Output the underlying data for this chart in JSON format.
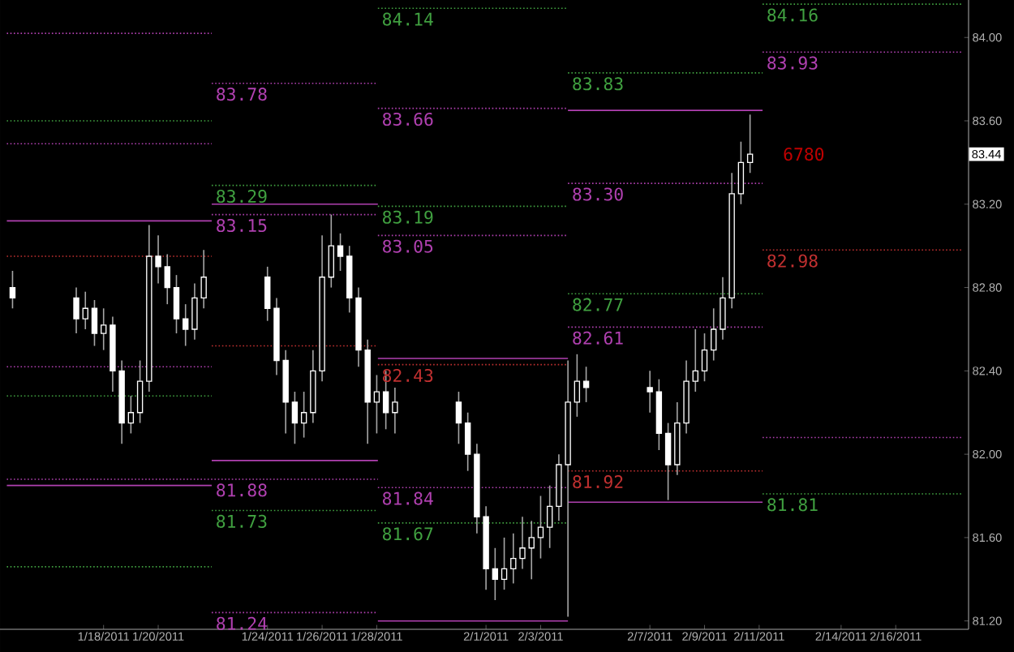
{
  "chart_data": {
    "type": "candlestick",
    "color": "#ffffff",
    "x": [
      "2011-01-14T16:00",
      "2011-01-17T00:00",
      "2011-01-17T08:00",
      "2011-01-17T16:00",
      "2011-01-18T00:00",
      "2011-01-18T08:00",
      "2011-01-18T16:00",
      "2011-01-19T00:00",
      "2011-01-19T08:00",
      "2011-01-19T16:00",
      "2011-01-20T00:00",
      "2011-01-20T08:00",
      "2011-01-20T16:00",
      "2011-01-21T00:00",
      "2011-01-21T08:00",
      "2011-01-21T16:00",
      "2011-01-24T00:00",
      "2011-01-24T08:00",
      "2011-01-24T16:00",
      "2011-01-25T00:00",
      "2011-01-25T08:00",
      "2011-01-25T16:00",
      "2011-01-26T00:00",
      "2011-01-26T08:00",
      "2011-01-26T16:00",
      "2011-01-27T00:00",
      "2011-01-27T08:00",
      "2011-01-27T16:00",
      "2011-01-28T00:00",
      "2011-01-28T08:00",
      "2011-01-28T16:00",
      "2011-01-31T00:00",
      "2011-01-31T08:00",
      "2011-01-31T16:00",
      "2011-02-01T00:00",
      "2011-02-01T08:00",
      "2011-02-01T16:00",
      "2011-02-02T00:00",
      "2011-02-02T08:00",
      "2011-02-02T16:00",
      "2011-02-03T00:00",
      "2011-02-03T08:00",
      "2011-02-03T16:00",
      "2011-02-04T00:00",
      "2011-02-04T08:00",
      "2011-02-04T16:00",
      "2011-02-07T00:00",
      "2011-02-07T08:00",
      "2011-02-07T16:00",
      "2011-02-08T00:00",
      "2011-02-08T08:00",
      "2011-02-08T16:00",
      "2011-02-09T00:00",
      "2011-02-09T08:00",
      "2011-02-09T16:00",
      "2011-02-10T00:00",
      "2011-02-10T08:00",
      "2011-02-10T16:00"
    ],
    "ohlc": [
      [
        82.8,
        82.88,
        82.7,
        82.75
      ],
      [
        82.75,
        82.8,
        82.58,
        82.65
      ],
      [
        82.65,
        82.78,
        82.6,
        82.7
      ],
      [
        82.7,
        82.74,
        82.52,
        82.58
      ],
      [
        82.58,
        82.7,
        82.5,
        82.62
      ],
      [
        82.62,
        82.66,
        82.3,
        82.4
      ],
      [
        82.4,
        82.45,
        82.05,
        82.15
      ],
      [
        82.15,
        82.28,
        82.1,
        82.2
      ],
      [
        82.2,
        82.45,
        82.15,
        82.35
      ],
      [
        82.35,
        83.1,
        82.3,
        82.95
      ],
      [
        82.95,
        83.05,
        82.82,
        82.9
      ],
      [
        82.9,
        82.96,
        82.72,
        82.8
      ],
      [
        82.8,
        82.86,
        82.58,
        82.65
      ],
      [
        82.65,
        82.72,
        82.52,
        82.6
      ],
      [
        82.6,
        82.82,
        82.55,
        82.75
      ],
      [
        82.75,
        82.98,
        82.7,
        82.85
      ],
      [
        82.85,
        82.9,
        82.64,
        82.7
      ],
      [
        82.7,
        82.75,
        82.38,
        82.45
      ],
      [
        82.45,
        82.5,
        82.1,
        82.25
      ],
      [
        82.25,
        82.3,
        82.05,
        82.15
      ],
      [
        82.15,
        82.3,
        82.08,
        82.2
      ],
      [
        82.2,
        82.5,
        82.15,
        82.4
      ],
      [
        82.4,
        83.05,
        82.35,
        82.85
      ],
      [
        82.85,
        83.15,
        82.8,
        83.0
      ],
      [
        83.0,
        83.06,
        82.88,
        82.95
      ],
      [
        82.95,
        83.0,
        82.68,
        82.75
      ],
      [
        82.75,
        82.8,
        82.42,
        82.5
      ],
      [
        82.5,
        82.55,
        82.05,
        82.25
      ],
      [
        82.25,
        82.38,
        82.1,
        82.3
      ],
      [
        82.3,
        82.4,
        82.12,
        82.2
      ],
      [
        82.2,
        82.32,
        82.1,
        82.25
      ],
      [
        82.25,
        82.3,
        82.05,
        82.15
      ],
      [
        82.15,
        82.2,
        81.92,
        82.0
      ],
      [
        82.0,
        82.05,
        81.62,
        81.7
      ],
      [
        81.7,
        81.75,
        81.35,
        81.45
      ],
      [
        81.45,
        81.55,
        81.3,
        81.4
      ],
      [
        81.4,
        81.6,
        81.35,
        81.45
      ],
      [
        81.45,
        81.62,
        81.38,
        81.5
      ],
      [
        81.5,
        81.7,
        81.45,
        81.55
      ],
      [
        81.55,
        81.68,
        81.4,
        81.6
      ],
      [
        81.6,
        81.8,
        81.5,
        81.65
      ],
      [
        81.65,
        81.85,
        81.55,
        81.75
      ],
      [
        81.75,
        82.0,
        81.68,
        81.95
      ],
      [
        81.95,
        82.45,
        81.22,
        82.25
      ],
      [
        82.25,
        82.48,
        82.18,
        82.35
      ],
      [
        82.35,
        82.42,
        82.25,
        82.32
      ],
      [
        82.32,
        82.4,
        82.2,
        82.3
      ],
      [
        82.3,
        82.36,
        82.02,
        82.1
      ],
      [
        82.1,
        82.15,
        81.78,
        81.95
      ],
      [
        81.95,
        82.25,
        81.9,
        82.15
      ],
      [
        82.15,
        82.45,
        82.1,
        82.35
      ],
      [
        82.35,
        82.6,
        82.3,
        82.4
      ],
      [
        82.4,
        82.58,
        82.35,
        82.5
      ],
      [
        82.5,
        82.7,
        82.45,
        82.6
      ],
      [
        82.6,
        82.85,
        82.55,
        82.75
      ],
      [
        82.75,
        83.35,
        82.7,
        83.25
      ],
      [
        83.25,
        83.5,
        83.2,
        83.4
      ],
      [
        83.4,
        83.63,
        83.35,
        83.44
      ]
    ],
    "xlim": [
      "2011-01-14T05:00",
      "2011-02-18T16:00"
    ],
    "ylim": [
      81.16,
      84.18
    ],
    "xticks": [
      {
        "value": "2011-01-18",
        "label": "1/18/2011"
      },
      {
        "value": "2011-01-20",
        "label": "1/20/2011"
      },
      {
        "value": "2011-01-24",
        "label": "1/24/2011"
      },
      {
        "value": "2011-01-26",
        "label": "1/26/2011"
      },
      {
        "value": "2011-01-28",
        "label": "1/28/2011"
      },
      {
        "value": "2011-02-01",
        "label": "2/1/2011"
      },
      {
        "value": "2011-02-03",
        "label": "2/3/2011"
      },
      {
        "value": "2011-02-07",
        "label": "2/7/2011"
      },
      {
        "value": "2011-02-09",
        "label": "2/9/2011"
      },
      {
        "value": "2011-02-11",
        "label": "2/11/2011"
      },
      {
        "value": "2011-02-14",
        "label": "2/14/2011"
      },
      {
        "value": "2011-02-16",
        "label": "2/16/2011"
      }
    ],
    "yticks": [
      {
        "value": 81.2,
        "label": "81.20"
      },
      {
        "value": 81.6,
        "label": "81.60"
      },
      {
        "value": 82.0,
        "label": "82.00"
      },
      {
        "value": 82.4,
        "label": "82.40"
      },
      {
        "value": 82.8,
        "label": "82.80"
      },
      {
        "value": 83.2,
        "label": "83.20"
      },
      {
        "value": 83.6,
        "label": "83.60"
      },
      {
        "value": 84.0,
        "label": "84.00"
      }
    ],
    "series": [
      {
        "type": "line",
        "x": [
          "2011-01-14T11:00",
          "2011-01-21T23:00"
        ],
        "values": [
          84.02,
          84.02
        ],
        "color": "#b040b0",
        "line_style": "dotted"
      },
      {
        "type": "line",
        "x": [
          "2011-01-14T11:00",
          "2011-01-21T23:00"
        ],
        "values": [
          83.6,
          83.6
        ],
        "color": "#40a040",
        "line_style": "dotted"
      },
      {
        "type": "line",
        "x": [
          "2011-01-14T11:00",
          "2011-01-21T23:00"
        ],
        "values": [
          83.49,
          83.49
        ],
        "color": "#b040b0",
        "line_style": "dotted"
      },
      {
        "type": "line",
        "x": [
          "2011-01-14T11:00",
          "2011-01-21T23:00"
        ],
        "values": [
          83.12,
          83.12
        ],
        "color": "#b040b0",
        "line_style": "solid"
      },
      {
        "type": "line",
        "x": [
          "2011-01-14T11:00",
          "2011-01-21T23:00"
        ],
        "values": [
          81.85,
          81.85
        ],
        "color": "#b040b0",
        "line_style": "solid"
      },
      {
        "type": "line",
        "x": [
          "2011-01-14T11:00",
          "2011-01-21T23:00"
        ],
        "values": [
          82.42,
          82.42
        ],
        "color": "#b040b0",
        "line_style": "dotted"
      },
      {
        "type": "line",
        "x": [
          "2011-01-14T11:00",
          "2011-01-21T23:00"
        ],
        "values": [
          82.95,
          82.95
        ],
        "color": "#c03030",
        "line_style": "dotted"
      },
      {
        "type": "line",
        "x": [
          "2011-01-14T11:00",
          "2011-01-21T23:00"
        ],
        "values": [
          82.28,
          82.28
        ],
        "color": "#40a040",
        "line_style": "dotted"
      },
      {
        "type": "line",
        "x": [
          "2011-01-14T11:00",
          "2011-01-28T01:00"
        ],
        "values": [
          81.88,
          81.88
        ],
        "color": "#b040b0",
        "line_style": "dotted"
      },
      {
        "type": "line",
        "x": [
          "2011-01-14T11:00",
          "2011-01-21T23:00"
        ],
        "values": [
          81.46,
          81.46
        ],
        "color": "#40a040",
        "line_style": "dotted"
      },
      {
        "type": "line",
        "x": [
          "2011-01-21T23:00",
          "2011-01-28T01:00"
        ],
        "values": [
          83.78,
          83.78
        ],
        "color": "#b040b0",
        "line_style": "dotted"
      },
      {
        "type": "line",
        "x": [
          "2011-01-21T23:00",
          "2011-01-28T01:00"
        ],
        "values": [
          83.29,
          83.29
        ],
        "color": "#40a040",
        "line_style": "dotted"
      },
      {
        "type": "line",
        "x": [
          "2011-01-21T23:00",
          "2011-01-28T01:00"
        ],
        "values": [
          83.15,
          83.15
        ],
        "color": "#b040b0",
        "line_style": "dotted"
      },
      {
        "type": "line",
        "x": [
          "2011-01-21T23:00",
          "2011-01-28T01:00"
        ],
        "values": [
          83.2,
          83.2
        ],
        "color": "#b040b0",
        "line_style": "solid"
      },
      {
        "type": "line",
        "x": [
          "2011-01-21T23:00",
          "2011-01-28T01:00"
        ],
        "values": [
          81.97,
          81.97
        ],
        "color": "#b040b0",
        "line_style": "solid"
      },
      {
        "type": "line",
        "x": [
          "2011-01-21T23:00",
          "2011-01-28T01:00"
        ],
        "values": [
          82.52,
          82.52
        ],
        "color": "#c03030",
        "line_style": "dotted"
      },
      {
        "type": "line",
        "x": [
          "2011-01-21T23:00",
          "2011-01-28T01:00"
        ],
        "values": [
          81.73,
          81.73
        ],
        "color": "#40a040",
        "line_style": "dotted"
      },
      {
        "type": "line",
        "x": [
          "2011-01-21T23:00",
          "2011-01-28T01:00"
        ],
        "values": [
          81.24,
          81.24
        ],
        "color": "#b040b0",
        "line_style": "dotted"
      },
      {
        "type": "line",
        "x": [
          "2011-01-28T01:00",
          "2011-02-04T00:00"
        ],
        "values": [
          84.14,
          84.14
        ],
        "color": "#40a040",
        "line_style": "dotted"
      },
      {
        "type": "line",
        "x": [
          "2011-01-28T01:00",
          "2011-02-04T00:00"
        ],
        "values": [
          83.66,
          83.66
        ],
        "color": "#b040b0",
        "line_style": "dotted"
      },
      {
        "type": "line",
        "x": [
          "2011-01-28T01:00",
          "2011-02-04T00:00"
        ],
        "values": [
          83.19,
          83.19
        ],
        "color": "#40a040",
        "line_style": "dotted"
      },
      {
        "type": "line",
        "x": [
          "2011-01-28T01:00",
          "2011-02-04T00:00"
        ],
        "values": [
          83.05,
          83.05
        ],
        "color": "#b040b0",
        "line_style": "dotted"
      },
      {
        "type": "line",
        "x": [
          "2011-01-28T01:00",
          "2011-02-04T00:00"
        ],
        "values": [
          82.46,
          82.46
        ],
        "color": "#b040b0",
        "line_style": "solid"
      },
      {
        "type": "line",
        "x": [
          "2011-01-28T01:00",
          "2011-02-04T00:00"
        ],
        "values": [
          81.2,
          81.2
        ],
        "color": "#b040b0",
        "line_style": "solid"
      },
      {
        "type": "line",
        "x": [
          "2011-01-28T01:00",
          "2011-02-04T00:00"
        ],
        "values": [
          82.43,
          82.43
        ],
        "color": "#c03030",
        "line_style": "dotted"
      },
      {
        "type": "line",
        "x": [
          "2011-01-28T01:00",
          "2011-02-04T00:00"
        ],
        "values": [
          81.84,
          81.84
        ],
        "color": "#b040b0",
        "line_style": "dotted"
      },
      {
        "type": "line",
        "x": [
          "2011-01-28T01:00",
          "2011-02-04T00:00"
        ],
        "values": [
          81.67,
          81.67
        ],
        "color": "#40a040",
        "line_style": "dotted"
      },
      {
        "type": "line",
        "x": [
          "2011-02-04T00:00",
          "2011-02-11T03:00"
        ],
        "values": [
          83.83,
          83.83
        ],
        "color": "#40a040",
        "line_style": "dotted"
      },
      {
        "type": "line",
        "x": [
          "2011-02-04T00:00",
          "2011-02-11T03:00"
        ],
        "values": [
          83.65,
          83.65
        ],
        "color": "#b040b0",
        "line_style": "solid"
      },
      {
        "type": "line",
        "x": [
          "2011-02-04T00:00",
          "2011-02-11T03:00"
        ],
        "values": [
          81.77,
          81.77
        ],
        "color": "#b040b0",
        "line_style": "solid"
      },
      {
        "type": "line",
        "x": [
          "2011-02-04T00:00",
          "2011-02-11T03:00"
        ],
        "values": [
          83.3,
          83.3
        ],
        "color": "#b040b0",
        "line_style": "dotted"
      },
      {
        "type": "line",
        "x": [
          "2011-02-04T00:00",
          "2011-02-11T03:00"
        ],
        "values": [
          82.77,
          82.77
        ],
        "color": "#40a040",
        "line_style": "dotted"
      },
      {
        "type": "line",
        "x": [
          "2011-02-04T00:00",
          "2011-02-11T03:00"
        ],
        "values": [
          82.61,
          82.61
        ],
        "color": "#b040b0",
        "line_style": "dotted"
      },
      {
        "type": "line",
        "x": [
          "2011-02-04T00:00",
          "2011-02-11T03:00"
        ],
        "values": [
          81.92,
          81.92
        ],
        "color": "#c03030",
        "line_style": "dotted"
      },
      {
        "type": "line",
        "x": [
          "2011-02-11T03:00",
          "2011-02-18T10:00"
        ],
        "values": [
          84.16,
          84.16
        ],
        "color": "#40a040",
        "line_style": "dotted"
      },
      {
        "type": "line",
        "x": [
          "2011-02-11T03:00",
          "2011-02-18T10:00"
        ],
        "values": [
          83.93,
          83.93
        ],
        "color": "#b040b0",
        "line_style": "dotted"
      },
      {
        "type": "line",
        "x": [
          "2011-02-11T03:00",
          "2011-02-18T10:00"
        ],
        "values": [
          82.98,
          82.98
        ],
        "color": "#c03030",
        "line_style": "dotted"
      },
      {
        "type": "line",
        "x": [
          "2011-02-11T03:00",
          "2011-02-18T10:00"
        ],
        "values": [
          82.08,
          82.08
        ],
        "color": "#b040b0",
        "line_style": "dotted"
      },
      {
        "type": "line",
        "x": [
          "2011-02-11T03:00",
          "2011-02-18T10:00"
        ],
        "values": [
          81.81,
          81.81
        ],
        "color": "#40a040",
        "line_style": "dotted"
      }
    ],
    "annotations": [
      {
        "text": "83.78",
        "x": "2011-01-21T23:00",
        "y": 83.78
      },
      {
        "text": "83.29",
        "x": "2011-01-21T23:00",
        "y": 83.29
      },
      {
        "text": "83.15",
        "x": "2011-01-21T23:00",
        "y": 83.15
      },
      {
        "text": "81.88",
        "x": "2011-01-21T23:00",
        "y": 81.88
      },
      {
        "text": "81.73",
        "x": "2011-01-21T23:00",
        "y": 81.73
      },
      {
        "text": "81.24",
        "x": "2011-01-21T23:00",
        "y": 81.24
      },
      {
        "text": "84.14",
        "x": "2011-01-28T01:00",
        "y": 84.14
      },
      {
        "text": "83.66",
        "x": "2011-01-28T01:00",
        "y": 83.66
      },
      {
        "text": "83.19",
        "x": "2011-01-28T01:00",
        "y": 83.19
      },
      {
        "text": "83.05",
        "x": "2011-01-28T01:00",
        "y": 83.05
      },
      {
        "text": "82.43",
        "x": "2011-01-28T01:00",
        "y": 82.43
      },
      {
        "text": "81.84",
        "x": "2011-01-28T01:00",
        "y": 81.84
      },
      {
        "text": "81.67",
        "x": "2011-01-28T01:00",
        "y": 81.67
      },
      {
        "text": "83.83",
        "x": "2011-02-04T00:00",
        "y": 83.83
      },
      {
        "text": "83.30",
        "x": "2011-02-04T00:00",
        "y": 83.3
      },
      {
        "text": "82.77",
        "x": "2011-02-04T00:00",
        "y": 82.77
      },
      {
        "text": "82.61",
        "x": "2011-02-04T00:00",
        "y": 82.61
      },
      {
        "text": "81.92",
        "x": "2011-02-04T00:00",
        "y": 81.92
      },
      {
        "text": "84.16",
        "x": "2011-02-11T03:00",
        "y": 84.16
      },
      {
        "text": "83.93",
        "x": "2011-02-11T03:00",
        "y": 83.93
      },
      {
        "text": "82.98",
        "x": "2011-02-11T03:00",
        "y": 82.98
      },
      {
        "text": "81.81",
        "x": "2011-02-11T03:00",
        "y": 81.81
      },
      "6780",
      "83.44"
    ]
  }
}
